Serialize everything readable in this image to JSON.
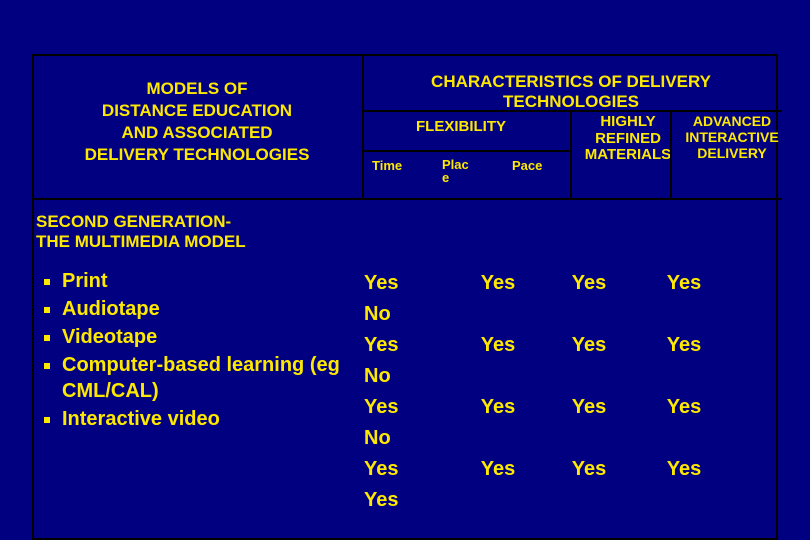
{
  "background_color": "#010080",
  "text_color": "#fde800",
  "border_color": "#000000",
  "fonts": {
    "family": "Arial",
    "header_size_pt": 13,
    "body_size_pt": 15
  },
  "left_header": "MODELS OF\nDISTANCE EDUCATION\nAND ASSOCIATED\nDELIVERY TECHNOLOGIES",
  "char_header": "CHARACTERISTICS OF DELIVERY TECHNOLOGIES",
  "flex_label": "FLEXIBILITY",
  "highly_label": "HIGHLY REFINED MATERIALS",
  "advanced_label": "ADVANCED INTERACTIVE DELIVERY",
  "sub_columns": {
    "time": "Time",
    "place": "Plac",
    "place2": "e",
    "pace": "Pace"
  },
  "section_title": "SECOND GENERATION-\nTHE MULTIMEDIA MODEL",
  "items": [
    {
      "label": "Print"
    },
    {
      "label": "Audiotape"
    },
    {
      "label": "Videotape"
    },
    {
      "label": "Computer-based learning (eg CML/CAL)"
    },
    {
      "label": "Interactive video"
    }
  ],
  "data_columns": {
    "time": [
      "Yes",
      "No",
      "Yes",
      "No",
      "Yes",
      "No",
      "Yes",
      "Yes"
    ],
    "place": [
      "Yes",
      "",
      "Yes",
      "",
      "Yes",
      "",
      "Yes",
      ""
    ],
    "pace": [
      "Yes",
      "",
      "Yes",
      "",
      "Yes",
      "",
      "Yes",
      ""
    ],
    "highly": [
      "Yes",
      "",
      "Yes",
      "",
      "Yes",
      "",
      "Yes",
      ""
    ]
  },
  "cutoff_row": [
    "Yes",
    "Yes",
    "Yes",
    "Yes"
  ]
}
